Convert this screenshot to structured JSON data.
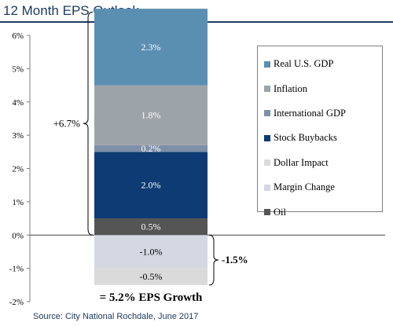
{
  "title": "12 Month EPS Outlook",
  "source": "Source: City National Rochdale, June 2017",
  "colors": {
    "title": "#1f3b63",
    "real_gdp": "#5b8fb2",
    "inflation": "#9da4a9",
    "intl_gdp": "#7e8fa8",
    "buybacks": "#0e3b73",
    "dollar": "#dadada",
    "margin": "#d3d8e2",
    "oil": "#555555"
  },
  "annotations": {
    "positive_total": "+6.7%",
    "negative_total": "-1.5%",
    "growth": "= 5.2% EPS Growth"
  },
  "chart_data": {
    "type": "bar",
    "stacked": true,
    "categories": [
      ""
    ],
    "ylim": [
      -2,
      6
    ],
    "yticks": [
      "-2%",
      "-1%",
      "0%",
      "1%",
      "2%",
      "3%",
      "4%",
      "5%",
      "6%"
    ],
    "grid": false,
    "legend_position": "right",
    "segments": [
      {
        "name": "Oil",
        "value": 0.5,
        "label": "0.5%",
        "base": 0,
        "color": "#555555"
      },
      {
        "name": "Stock Buybacks",
        "value": 2.0,
        "label": "2.0%",
        "base": 0.5,
        "color": "#0e3b73"
      },
      {
        "name": "International GDP",
        "value": 0.2,
        "label": "0.2%",
        "base": 2.5,
        "color": "#7e8fa8"
      },
      {
        "name": "Inflation",
        "value": 1.8,
        "label": "1.8%",
        "base": 2.7,
        "color": "#9da4a9"
      },
      {
        "name": "Real U.S. GDP",
        "value": 2.3,
        "label": "2.3%",
        "base": 4.5,
        "color": "#5b8fb2"
      },
      {
        "name": "Margin Change",
        "value": -1.0,
        "label": "-1.0%",
        "base": 0,
        "color": "#d3d8e2"
      },
      {
        "name": "Dollar Impact",
        "value": -0.5,
        "label": "-0.5%",
        "base": -1.0,
        "color": "#dadada"
      }
    ],
    "legend": [
      {
        "name": "Real U.S. GDP",
        "color": "#5b8fb2"
      },
      {
        "name": "Inflation",
        "color": "#9da4a9"
      },
      {
        "name": "International GDP",
        "color": "#7e8fa8"
      },
      {
        "name": "Stock Buybacks",
        "color": "#0e3b73"
      },
      {
        "name": "Dollar Impact",
        "color": "#dadada"
      },
      {
        "name": "Margin Change",
        "color": "#d3d8e2"
      },
      {
        "name": "Oil",
        "color": "#555555"
      }
    ]
  }
}
